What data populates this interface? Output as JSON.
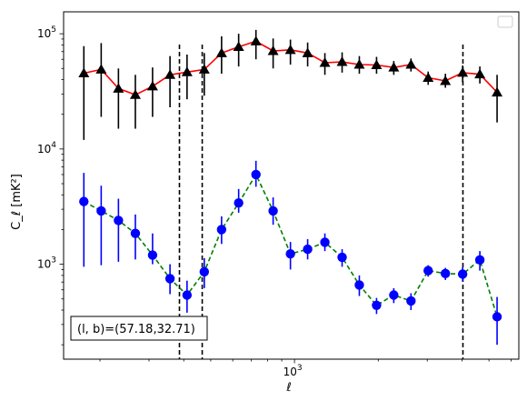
{
  "chart_data": {
    "type": "scatter",
    "xlabel": "ℓ",
    "ylabel": "C_ℓ  [mK²]",
    "xscale": "log",
    "yscale": "log",
    "xlim": [
      148,
      6400
    ],
    "ylim": [
      150,
      155000
    ],
    "x_tick_labels": [
      {
        "value": 1000,
        "base": "10",
        "exp": "3"
      }
    ],
    "y_tick_labels": [
      {
        "value": 1000,
        "base": "10",
        "exp": "3"
      },
      {
        "value": 10000,
        "base": "10",
        "exp": "4"
      },
      {
        "value": 100000,
        "base": "10",
        "exp": "5"
      }
    ],
    "annotation": "(l, b)=(57.18,32.71)",
    "legend": {
      "location": "top-right",
      "entries": []
    },
    "vertical_lines": [
      386,
      466,
      4030
    ],
    "series": [
      {
        "marker": "triangle",
        "marker_color": "#000000",
        "line_color": "#ff0000",
        "line_style": "solid",
        "error_color": "#000000",
        "x": [
          175,
          202,
          233,
          268,
          309,
          357,
          411,
          474,
          547,
          630,
          727,
          838,
          967,
          1115,
          1286,
          1483,
          1710,
          1972,
          2274,
          2622,
          3023,
          3486,
          4020,
          4636,
          5346
        ],
        "y": [
          45500,
          49000,
          33500,
          29500,
          35000,
          44000,
          46500,
          49000,
          68000,
          77000,
          86000,
          71000,
          72500,
          68000,
          56000,
          57000,
          54000,
          53500,
          51000,
          54000,
          41500,
          39000,
          46000,
          44500,
          31000
        ],
        "y_low": [
          12000,
          19000,
          15000,
          15000,
          19000,
          23000,
          27000,
          29000,
          45000,
          52000,
          60000,
          50000,
          54000,
          52000,
          44000,
          46000,
          45000,
          45000,
          44000,
          47000,
          36000,
          34000,
          38000,
          37000,
          17000
        ],
        "y_high": [
          78000,
          83000,
          50000,
          44000,
          51000,
          64000,
          66000,
          68000,
          95000,
          100000,
          108000,
          91000,
          89000,
          84000,
          68000,
          69000,
          64000,
          63000,
          58000,
          61000,
          47000,
          45000,
          53000,
          52000,
          44000
        ]
      },
      {
        "marker": "circle",
        "marker_color": "#0000ff",
        "line_color": "#008000",
        "line_style": "dashed",
        "error_color": "#0000ff",
        "x": [
          175,
          202,
          233,
          268,
          309,
          357,
          411,
          474,
          547,
          630,
          727,
          838,
          967,
          1115,
          1286,
          1483,
          1710,
          1972,
          2274,
          2622,
          3023,
          3486,
          4020,
          4636,
          5346
        ],
        "y": [
          3500,
          2900,
          2400,
          1850,
          1200,
          750,
          540,
          860,
          2000,
          3400,
          6000,
          2900,
          1230,
          1350,
          1550,
          1150,
          660,
          440,
          540,
          480,
          880,
          830,
          820,
          1090,
          350
        ],
        "y_low": [
          950,
          980,
          1050,
          1100,
          1000,
          550,
          380,
          620,
          1500,
          2800,
          4700,
          2200,
          900,
          1100,
          1300,
          950,
          530,
          370,
          460,
          400,
          780,
          730,
          710,
          880,
          200
        ],
        "y_high": [
          6200,
          4800,
          3700,
          2700,
          1850,
          1000,
          720,
          1130,
          2600,
          4500,
          7900,
          3800,
          1560,
          1650,
          1850,
          1350,
          800,
          510,
          620,
          560,
          980,
          930,
          940,
          1300,
          520
        ]
      }
    ]
  }
}
